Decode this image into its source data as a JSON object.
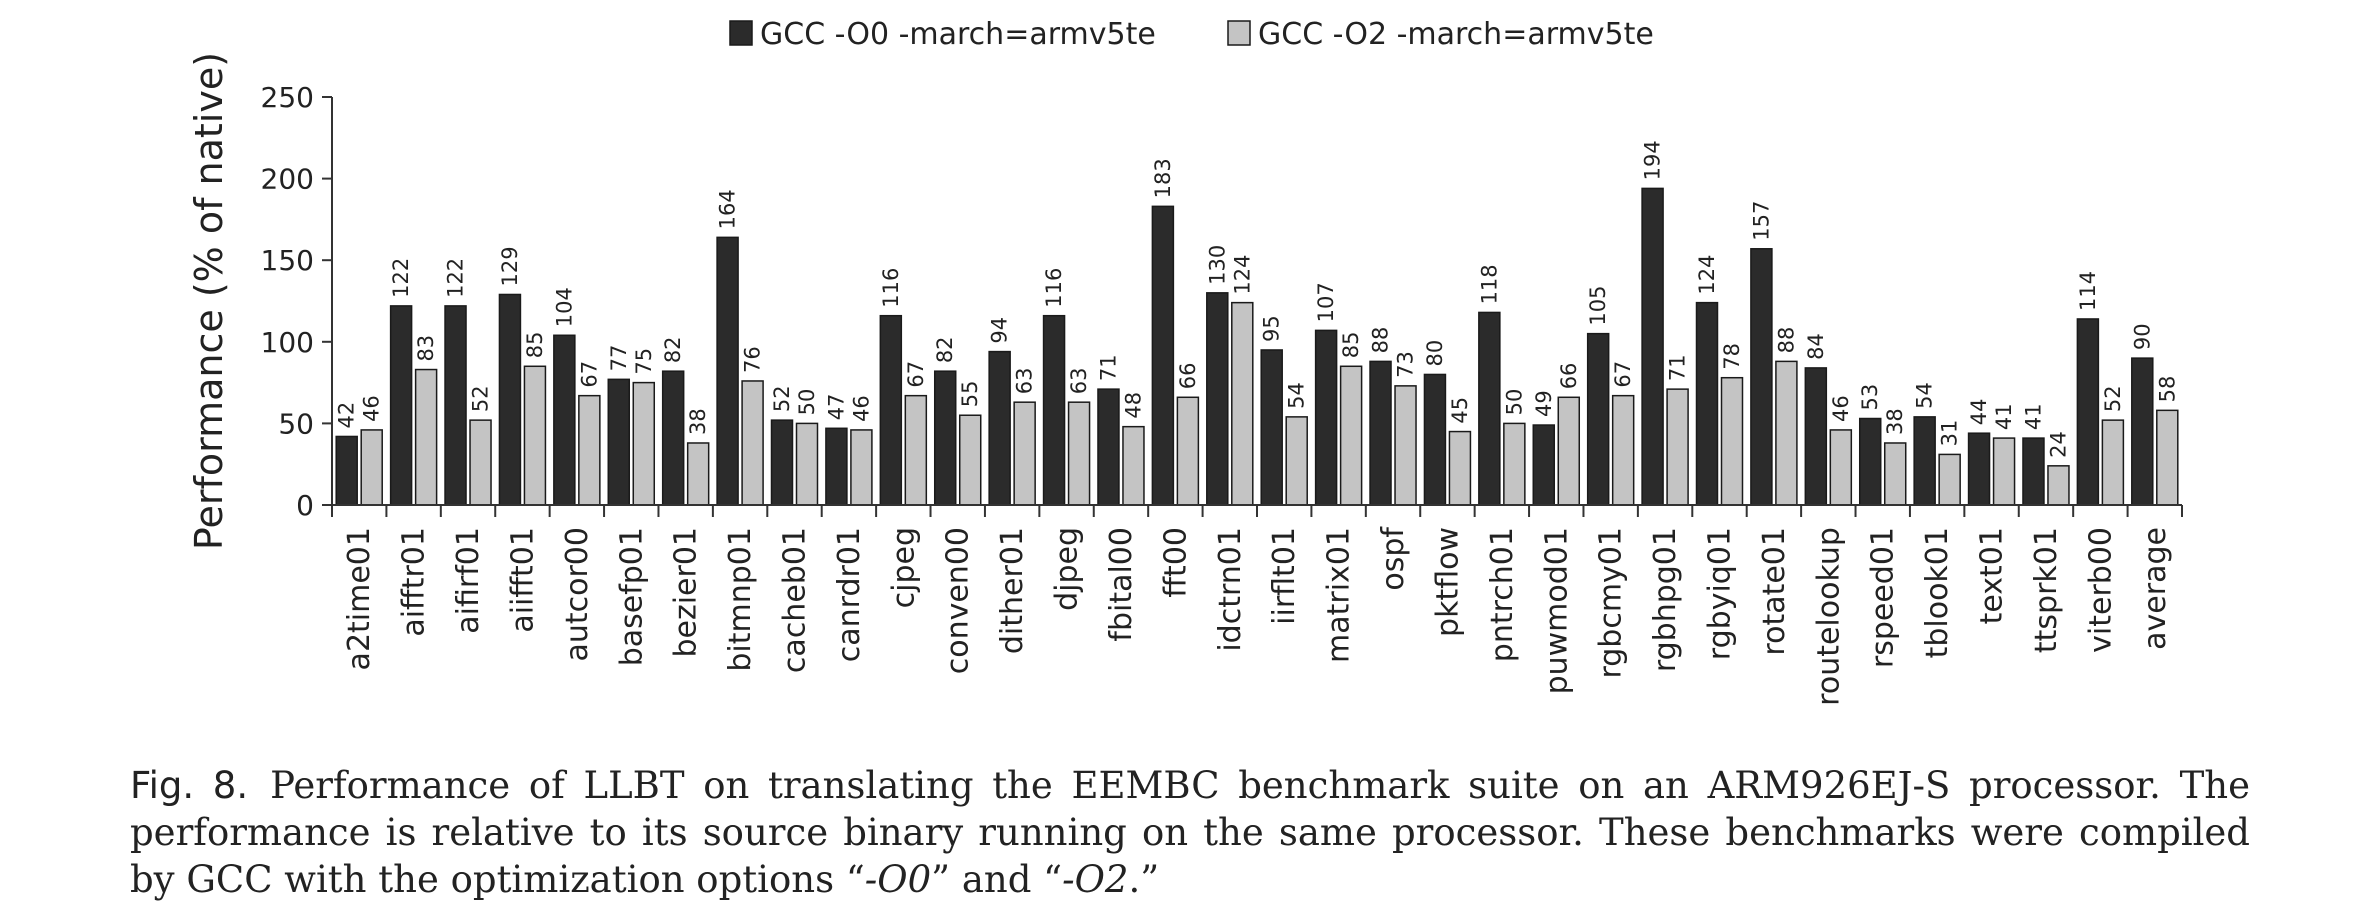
{
  "chart_data": {
    "type": "bar",
    "title": "",
    "xlabel": "",
    "ylabel": "Performance (% of native)",
    "ylim": [
      0,
      250
    ],
    "yticks": [
      0,
      50,
      100,
      150,
      200,
      250
    ],
    "grid": false,
    "legend_position": "top-center",
    "categories": [
      "a2time01",
      "aifftr01",
      "aifirf01",
      "aiifft01",
      "autcor00",
      "basefp01",
      "bezier01",
      "bitmnp01",
      "cacheb01",
      "canrdr01",
      "cjpeg",
      "conven00",
      "dither01",
      "djpeg",
      "fbital00",
      "fft00",
      "idctrn01",
      "iirflt01",
      "matrix01",
      "ospf",
      "pktflow",
      "pntrch01",
      "puwmod01",
      "rgbcmy01",
      "rgbhpg01",
      "rgbyiq01",
      "rotate01",
      "routelookup",
      "rspeed01",
      "tblook01",
      "text01",
      "ttsprk01",
      "viterb00",
      "average"
    ],
    "series": [
      {
        "name": "GCC -O0 -march=armv5te",
        "color": "#2b2b2b",
        "values": [
          42,
          122,
          122,
          129,
          104,
          77,
          82,
          164,
          52,
          47,
          116,
          82,
          94,
          116,
          71,
          183,
          130,
          95,
          107,
          88,
          80,
          118,
          49,
          105,
          194,
          124,
          157,
          84,
          53,
          54,
          44,
          41,
          114,
          90
        ]
      },
      {
        "name": "GCC -O2 -march=armv5te",
        "color": "#c4c4c4",
        "values": [
          46,
          83,
          52,
          85,
          67,
          75,
          38,
          76,
          50,
          46,
          67,
          55,
          63,
          63,
          48,
          66,
          124,
          54,
          85,
          73,
          45,
          50,
          66,
          67,
          71,
          78,
          88,
          46,
          38,
          31,
          41,
          24,
          52,
          58
        ]
      }
    ]
  },
  "caption": {
    "figure_label": "Fig. 8.",
    "text_part1": "Performance of LLBT on translating the EEMBC benchmark suite on an ARM926EJ-S processor. The performance is relative to its source binary running on the same processor. These benchmarks were compiled by GCC with the optimization options “",
    "opt1": "-O0",
    "text_part2": "” and “",
    "opt2": "-O2",
    "text_part3": ".”"
  }
}
